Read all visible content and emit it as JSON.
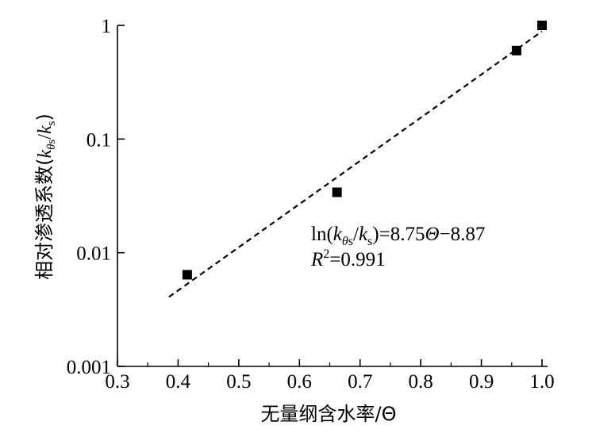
{
  "chart_data": {
    "type": "scatter",
    "title": "",
    "xlabel": "无量纲含水率/Θ",
    "ylabel_main": "相对渗透系数",
    "ylabel_paren_open": "(",
    "ylabel_k": "k",
    "ylabel_sub_theta": "θ",
    "ylabel_sub_s": "s",
    "ylabel_slash": "/",
    "ylabel_k2": "k",
    "ylabel_sub2": "s",
    "ylabel_paren_close": ")",
    "x_range": [
      0.3,
      1.0
    ],
    "y_range": [
      0.001,
      1
    ],
    "y_scale": "log",
    "grid": false,
    "x_ticks": [
      "0.3",
      "0.4",
      "0.5",
      "0.6",
      "0.7",
      "0.8",
      "0.9",
      "1.0"
    ],
    "x_tick_values": [
      0.3,
      0.4,
      0.5,
      0.6,
      0.7,
      0.8,
      0.9,
      1.0
    ],
    "y_ticks": [
      "0.001",
      "0.01",
      "0.1",
      "1"
    ],
    "y_tick_values": [
      0.001,
      0.01,
      0.1,
      1
    ],
    "points": [
      {
        "x": 0.415,
        "y": 0.0064
      },
      {
        "x": 0.662,
        "y": 0.034
      },
      {
        "x": 0.958,
        "y": 0.6
      },
      {
        "x": 1.0,
        "y": 1.0
      }
    ],
    "fit": {
      "slope": 8.75,
      "intercept": -8.87,
      "x_start": 0.385,
      "x_end": 1.0
    },
    "annotation": {
      "eq_ln": "ln(",
      "eq_k": "k",
      "eq_sub_theta": "θ",
      "eq_sub_s": "s",
      "eq_slash": "/",
      "eq_k2": "k",
      "eq_sub2": "s",
      "eq_rest": ")=8.75",
      "eq_theta": "Θ",
      "eq_const": "−8.87",
      "r2_r": "R",
      "r2_sup": "2",
      "r2_val": "=0.991"
    }
  }
}
